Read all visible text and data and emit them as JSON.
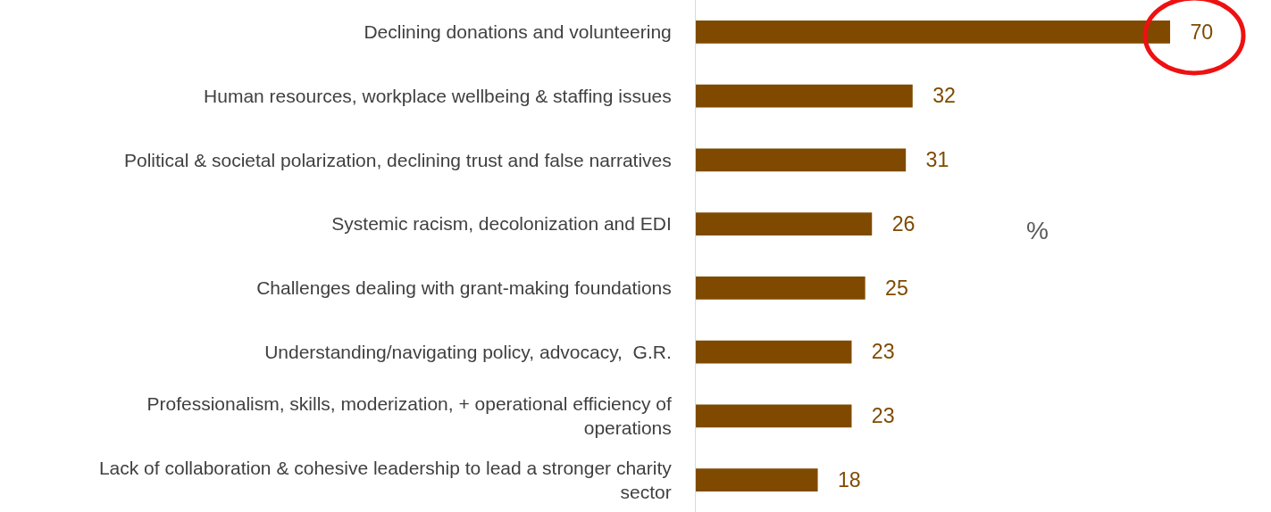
{
  "chart_data": {
    "type": "bar",
    "orientation": "horizontal",
    "categories": [
      "Declining donations and volunteering",
      "Human resources, workplace wellbeing & staffing issues",
      "Political & societal polarization, declining trust and false narratives",
      "Systemic racism, decolonization and EDI",
      "Challenges dealing with grant-making foundations",
      "Understanding/navigating policy, advocacy,  G.R.",
      "Professionalism, skills, moderization, + operational efficiency of operations",
      "Lack of collaboration & cohesive leadership to lead a stronger charity sector"
    ],
    "values": [
      70,
      32,
      31,
      26,
      25,
      23,
      23,
      18
    ],
    "color": "#7f4a00",
    "data_labels": true,
    "tick_labels": "y",
    "annotations": [
      "%"
    ]
  }
}
